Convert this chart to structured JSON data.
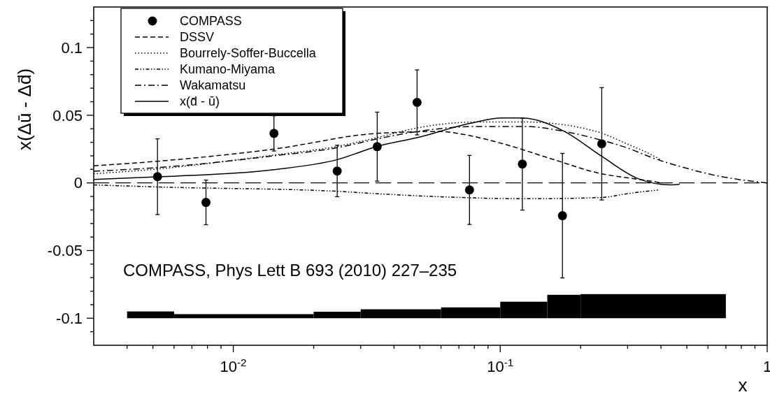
{
  "chart_data": {
    "type": "scatter",
    "xlabel": "x",
    "ylabel": "x(Δū - Δd̄)",
    "log": "x",
    "legend": "top left",
    "grid": false,
    "xlim": [
      0.003,
      1
    ],
    "ylim": [
      -0.12,
      0.13
    ],
    "xticks": [
      {
        "value": 0.004,
        "label": null
      },
      {
        "value": 0.005,
        "label": null
      },
      {
        "value": 0.006,
        "label": null
      },
      {
        "value": 0.007,
        "label": null
      },
      {
        "value": 0.008,
        "label": null
      },
      {
        "value": 0.009,
        "label": null
      },
      {
        "value": 0.01,
        "label": "10$^{-2}$"
      },
      {
        "value": 0.02,
        "label": null
      },
      {
        "value": 0.03,
        "label": null
      },
      {
        "value": 0.04,
        "label": null
      },
      {
        "value": 0.05,
        "label": null
      },
      {
        "value": 0.06,
        "label": null
      },
      {
        "value": 0.07,
        "label": null
      },
      {
        "value": 0.08,
        "label": null
      },
      {
        "value": 0.09,
        "label": null
      },
      {
        "value": 0.1,
        "label": "10$^{-1}$"
      },
      {
        "value": 0.2,
        "label": null
      },
      {
        "value": 0.3,
        "label": null
      },
      {
        "value": 0.4,
        "label": null
      },
      {
        "value": 0.5,
        "label": null
      },
      {
        "value": 0.6,
        "label": null
      },
      {
        "value": 0.7,
        "label": null
      },
      {
        "value": 0.8,
        "label": null
      },
      {
        "value": 0.9,
        "label": null
      },
      {
        "value": 1,
        "label": "1"
      }
    ],
    "yticks": [
      {
        "value": -0.11,
        "label": null
      },
      {
        "value": -0.1,
        "label": "-0.1"
      },
      {
        "value": -0.09,
        "label": null
      },
      {
        "value": -0.08,
        "label": null
      },
      {
        "value": -0.07,
        "label": null
      },
      {
        "value": -0.06,
        "label": null
      },
      {
        "value": -0.05,
        "label": "-0.05"
      },
      {
        "value": -0.04,
        "label": null
      },
      {
        "value": -0.03,
        "label": null
      },
      {
        "value": -0.02,
        "label": null
      },
      {
        "value": -0.01,
        "label": null
      },
      {
        "value": 0,
        "label": "0"
      },
      {
        "value": 0.01,
        "label": null
      },
      {
        "value": 0.02,
        "label": null
      },
      {
        "value": 0.03,
        "label": null
      },
      {
        "value": 0.04,
        "label": null
      },
      {
        "value": 0.05,
        "label": "0.05"
      },
      {
        "value": 0.06,
        "label": null
      },
      {
        "value": 0.07,
        "label": null
      },
      {
        "value": 0.08,
        "label": null
      },
      {
        "value": 0.09,
        "label": null
      },
      {
        "value": 0.1,
        "label": "0.1"
      },
      {
        "value": 0.11,
        "label": null
      },
      {
        "value": 0.12,
        "label": null
      }
    ],
    "ref_lines": [
      {
        "axis": "y",
        "value": 0,
        "line_style": "dashed",
        "color": "#000000"
      }
    ],
    "annotations": [
      "COMPASS, Phys Lett B 693 (2010) 227–235"
    ],
    "series": [
      {
        "name": "COMPASS",
        "marker": "circle",
        "color": "#000000",
        "x": [
          0.0052,
          0.0079,
          0.0142,
          0.0245,
          0.0346,
          0.0488,
          0.0767,
          0.121,
          0.171,
          0.24
        ],
        "values": [
          0.0046,
          -0.0144,
          0.0366,
          0.0088,
          0.0268,
          0.0595,
          -0.0052,
          0.0139,
          -0.0242,
          0.0289
        ],
        "errors": [
          0.028,
          0.0165,
          0.013,
          0.019,
          0.0255,
          0.024,
          0.0255,
          0.034,
          0.046,
          0.0415
        ]
      },
      {
        "name": "DSSV",
        "type": "line",
        "line_style": "dashed",
        "marker": "none",
        "color": "#000000",
        "x": [
          0.003,
          0.0052,
          0.0142,
          0.0346,
          0.06,
          0.072,
          0.102,
          0.156,
          0.24,
          0.298,
          0.37,
          0.4
        ],
        "values": [
          0.0126,
          0.016,
          0.025,
          0.0366,
          0.038,
          0.036,
          0.029,
          0.0177,
          0.0067,
          0.0038,
          0.0012,
          0
        ]
      },
      {
        "name": "Bourrely-Soffer-Buccella",
        "type": "line",
        "line_style": "dotted",
        "marker": "none",
        "color": "#000000",
        "x": [
          0.003,
          0.0052,
          0.0142,
          0.0245,
          0.0346,
          0.049,
          0.082,
          0.125,
          0.229,
          0.298,
          0.37,
          0.4
        ],
        "values": [
          0.0067,
          0.0103,
          0.0206,
          0.027,
          0.0335,
          0.0407,
          0.045,
          0.045,
          0.038,
          0.0289,
          0.0206,
          0.017
        ]
      },
      {
        "name": "Kumano-Miyama",
        "type": "line",
        "line_style": "dashdotdot",
        "marker": "none",
        "color": "#000000",
        "x": [
          0.003,
          0.0052,
          0.0245,
          0.0346,
          0.053,
          0.125,
          0.24,
          0.298,
          0.39
        ],
        "values": [
          -0.0015,
          -0.003,
          -0.0062,
          -0.008,
          -0.0098,
          -0.0117,
          -0.0108,
          -0.008,
          -0.0052
        ]
      },
      {
        "name": "Wakamatsu",
        "type": "line",
        "line_style": "dashdot",
        "marker": "none",
        "color": "#000000",
        "x": [
          0.003,
          0.0052,
          0.0142,
          0.0245,
          0.0346,
          0.049,
          0.082,
          0.125,
          0.174,
          0.24,
          0.298,
          0.37,
          0.51,
          0.63,
          0.78,
          1
        ],
        "values": [
          0.0086,
          0.0113,
          0.02,
          0.026,
          0.0325,
          0.038,
          0.0417,
          0.0417,
          0.038,
          0.0315,
          0.026,
          0.0187,
          0.0103,
          0.0058,
          0.0026,
          0
        ]
      },
      {
        "name": "x(d̄ - ū)",
        "type": "line",
        "line_style": "solid",
        "marker": "none",
        "color": "#000000",
        "x": [
          0.003,
          0.0052,
          0.0142,
          0.0245,
          0.0346,
          0.049,
          0.077,
          0.102,
          0.12,
          0.174,
          0.24,
          0.33,
          0.435,
          0.47
        ],
        "values": [
          0.0026,
          0.0045,
          0.0098,
          0.0172,
          0.027,
          0.0335,
          0.044,
          0.048,
          0.048,
          0.038,
          0.0196,
          0.003,
          -0.0015,
          -0.001
        ]
      },
      {
        "type": "histogram",
        "color": "#000000",
        "bins": [
          0.004,
          0.006,
          0.02,
          0.03,
          0.06,
          0.1,
          0.15,
          0.2,
          0.7
        ],
        "base": [
          -0.1,
          -0.1,
          -0.1,
          -0.1,
          -0.1,
          -0.1,
          -0.1,
          -0.1
        ],
        "values": [
          0.005,
          0.003,
          0.0048,
          0.0066,
          0.008,
          0.0122,
          0.0173,
          0.0178
        ]
      }
    ]
  }
}
